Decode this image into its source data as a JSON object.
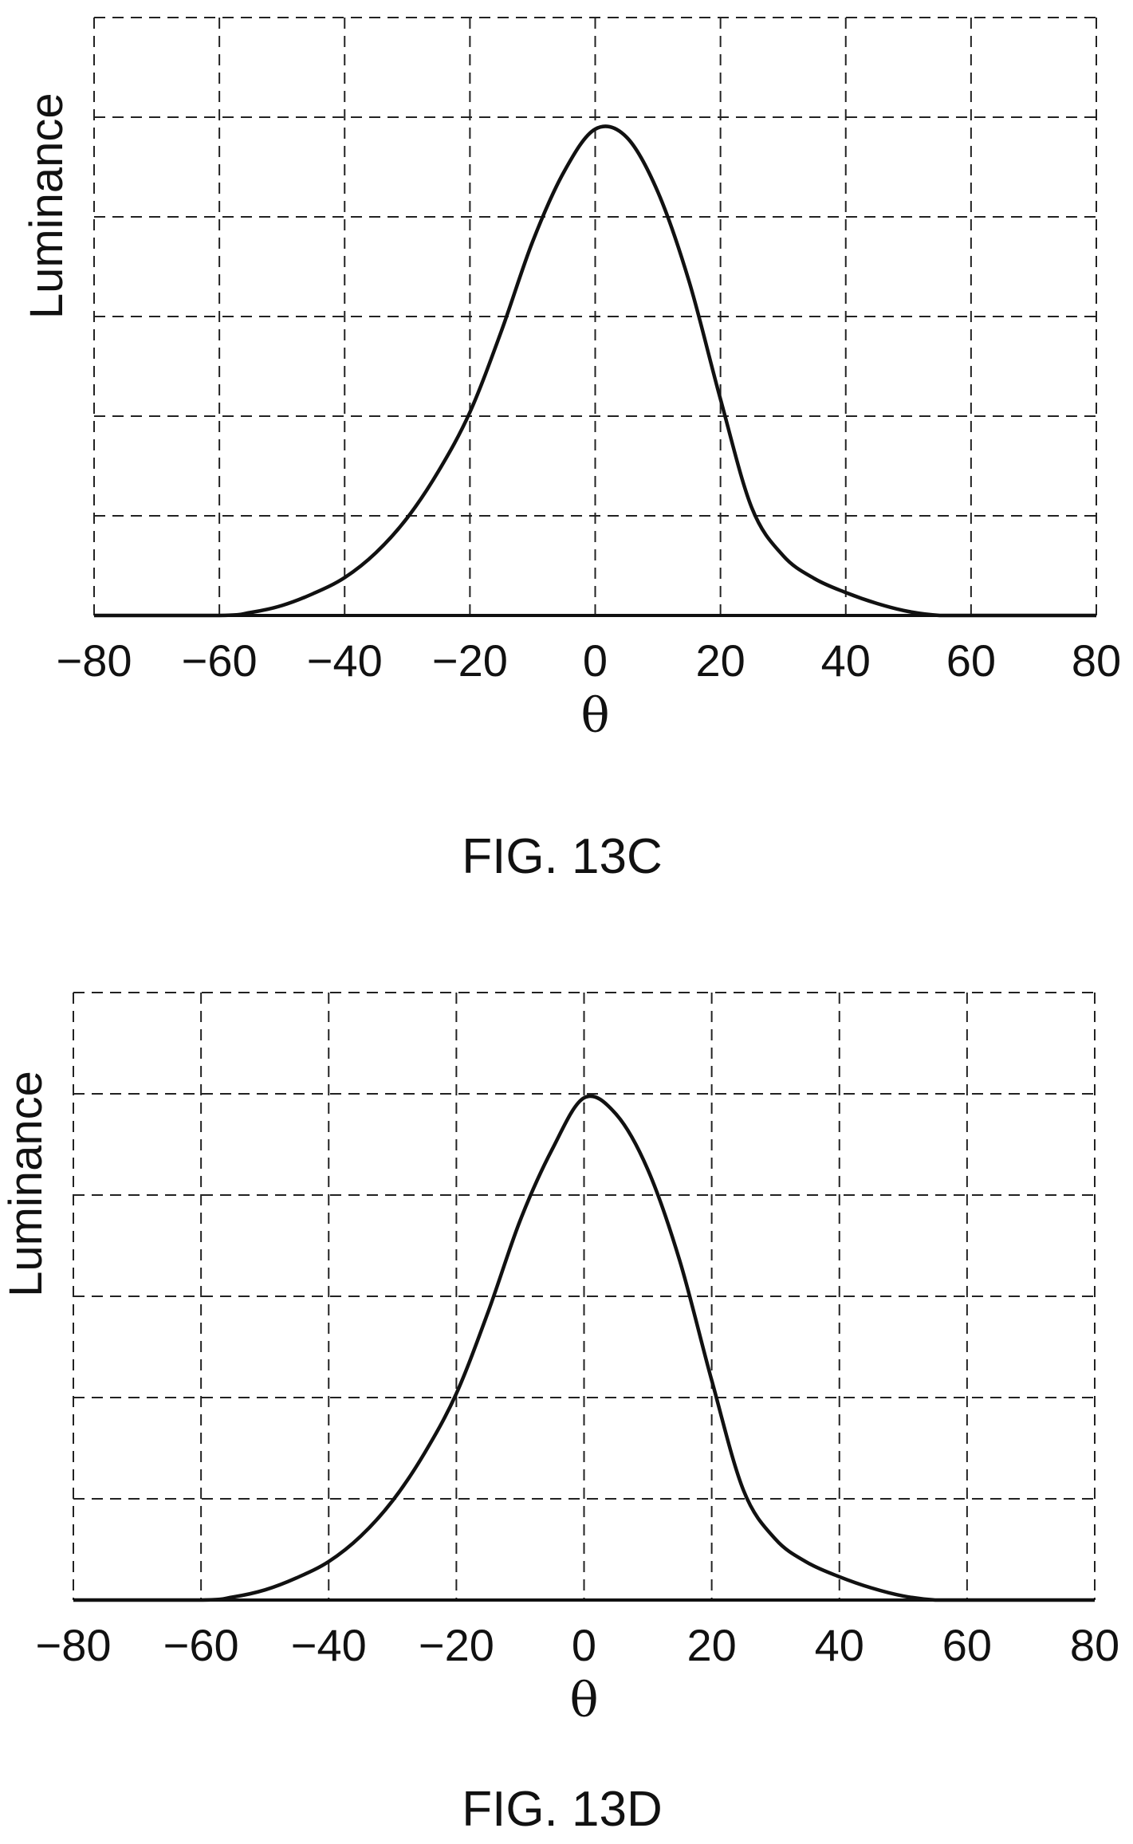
{
  "chart_data": [
    {
      "type": "line",
      "caption": "FIG. 13C",
      "xlabel": "θ",
      "ylabel": "Luminance",
      "xlim": [
        -80,
        80
      ],
      "ylim": [
        0,
        6
      ],
      "xticks": [
        "−80",
        "−60",
        "−40",
        "−20",
        "0",
        "20",
        "40",
        "60",
        "80"
      ],
      "yticks_labeled": false,
      "grid": true,
      "series": [
        {
          "x": [
            -80,
            -60,
            -55,
            -50,
            -45,
            -40,
            -35,
            -30,
            -25,
            -20,
            -15,
            -10,
            -5,
            0,
            5,
            10,
            15,
            20,
            25,
            30,
            35,
            40,
            45,
            50,
            55,
            60,
            80
          ],
          "y": [
            0,
            0,
            0.03,
            0.1,
            0.22,
            0.38,
            0.63,
            0.98,
            1.45,
            2.04,
            2.85,
            3.75,
            4.45,
            4.88,
            4.8,
            4.25,
            3.35,
            2.17,
            1.08,
            0.6,
            0.37,
            0.23,
            0.12,
            0.04,
            0,
            0,
            0
          ]
        }
      ]
    },
    {
      "type": "line",
      "caption": "FIG. 13D",
      "xlabel": "θ",
      "ylabel": "Luminance",
      "xlim": [
        -80,
        80
      ],
      "ylim": [
        0,
        6
      ],
      "xticks": [
        "−80",
        "−60",
        "−40",
        "−20",
        "0",
        "20",
        "40",
        "60",
        "80"
      ],
      "yticks_labeled": false,
      "grid": true,
      "series": [
        {
          "x": [
            -80,
            -60,
            -55,
            -50,
            -45,
            -40,
            -35,
            -30,
            -25,
            -20,
            -15,
            -10,
            -5,
            0,
            5,
            10,
            15,
            20,
            25,
            30,
            35,
            40,
            45,
            50,
            55,
            60,
            80
          ],
          "y": [
            0,
            0,
            0.03,
            0.1,
            0.22,
            0.38,
            0.63,
            0.98,
            1.45,
            2.04,
            2.85,
            3.75,
            4.45,
            4.96,
            4.8,
            4.25,
            3.35,
            2.17,
            1.08,
            0.6,
            0.37,
            0.23,
            0.12,
            0.04,
            0,
            0,
            0
          ]
        }
      ]
    }
  ]
}
